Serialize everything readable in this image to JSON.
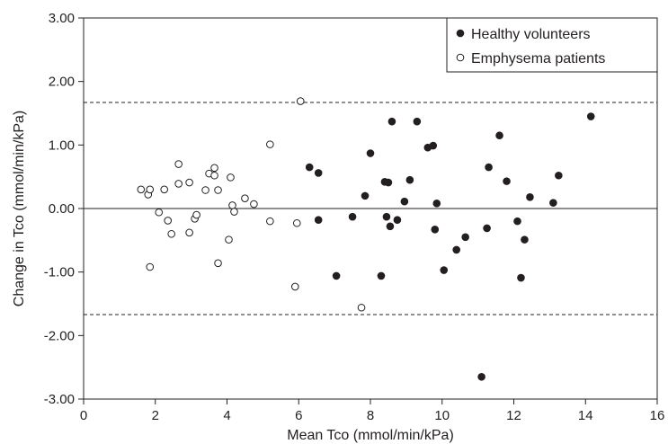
{
  "chart_data": {
    "type": "scatter",
    "xlabel": "Mean Tco (mmol/min/kPa)",
    "ylabel": "Change in Tco (mmol/min/kPa)",
    "xlim": [
      0,
      16
    ],
    "ylim": [
      -3,
      3
    ],
    "xticks": [
      "0",
      "2",
      "4",
      "6",
      "8",
      "10",
      "12",
      "14",
      "16"
    ],
    "yticks": [
      "-3.00",
      "-2.00",
      "-1.00",
      "0.00",
      "1.00",
      "2.00",
      "3.00"
    ],
    "grid": false,
    "legend_position": "top-right",
    "reference_lines": [
      {
        "y": 1.67,
        "style": "dashed"
      },
      {
        "y": 0,
        "style": "solid"
      },
      {
        "y": -1.67,
        "style": "dashed"
      }
    ],
    "series": [
      {
        "name": "Healthy volunteers",
        "marker": "filled-circle",
        "color": "#231f20",
        "points": [
          [
            6.3,
            0.65
          ],
          [
            6.55,
            0.56
          ],
          [
            6.55,
            -0.18
          ],
          [
            7.05,
            -1.06
          ],
          [
            7.5,
            -0.13
          ],
          [
            7.85,
            0.2
          ],
          [
            8.0,
            0.87
          ],
          [
            8.3,
            -1.06
          ],
          [
            8.4,
            0.42
          ],
          [
            8.45,
            -0.13
          ],
          [
            8.5,
            0.41
          ],
          [
            8.55,
            -0.28
          ],
          [
            8.6,
            1.37
          ],
          [
            8.75,
            -0.18
          ],
          [
            8.95,
            0.11
          ],
          [
            9.1,
            0.45
          ],
          [
            9.3,
            1.37
          ],
          [
            9.6,
            0.96
          ],
          [
            9.75,
            0.99
          ],
          [
            9.8,
            -0.33
          ],
          [
            9.85,
            0.08
          ],
          [
            10.05,
            -0.97
          ],
          [
            10.4,
            -0.65
          ],
          [
            10.65,
            -0.45
          ],
          [
            11.1,
            -2.65
          ],
          [
            11.25,
            -0.31
          ],
          [
            11.3,
            0.65
          ],
          [
            11.6,
            1.15
          ],
          [
            11.8,
            0.43
          ],
          [
            12.1,
            -0.2
          ],
          [
            12.2,
            -1.09
          ],
          [
            12.3,
            -0.49
          ],
          [
            12.45,
            0.18
          ],
          [
            13.1,
            0.09
          ],
          [
            13.25,
            0.52
          ],
          [
            14.15,
            1.45
          ]
        ]
      },
      {
        "name": "Emphysema patients",
        "marker": "open-circle",
        "color": "#231f20",
        "points": [
          [
            1.6,
            0.3
          ],
          [
            1.8,
            0.22
          ],
          [
            1.85,
            0.3
          ],
          [
            1.85,
            -0.92
          ],
          [
            2.1,
            -0.06
          ],
          [
            2.25,
            0.3
          ],
          [
            2.35,
            -0.19
          ],
          [
            2.45,
            -0.4
          ],
          [
            2.65,
            0.7
          ],
          [
            2.65,
            0.39
          ],
          [
            2.95,
            0.41
          ],
          [
            2.95,
            -0.38
          ],
          [
            3.1,
            -0.16
          ],
          [
            3.15,
            -0.1
          ],
          [
            3.4,
            0.29
          ],
          [
            3.5,
            0.55
          ],
          [
            3.65,
            0.64
          ],
          [
            3.65,
            0.52
          ],
          [
            3.75,
            0.29
          ],
          [
            3.75,
            -0.86
          ],
          [
            4.05,
            -0.49
          ],
          [
            4.1,
            0.49
          ],
          [
            4.15,
            0.05
          ],
          [
            4.2,
            -0.05
          ],
          [
            4.5,
            0.16
          ],
          [
            4.75,
            0.07
          ],
          [
            5.2,
            1.01
          ],
          [
            5.2,
            -0.2
          ],
          [
            5.9,
            -1.23
          ],
          [
            5.95,
            -0.23
          ],
          [
            6.05,
            1.69
          ],
          [
            7.75,
            -1.56
          ]
        ]
      }
    ]
  }
}
